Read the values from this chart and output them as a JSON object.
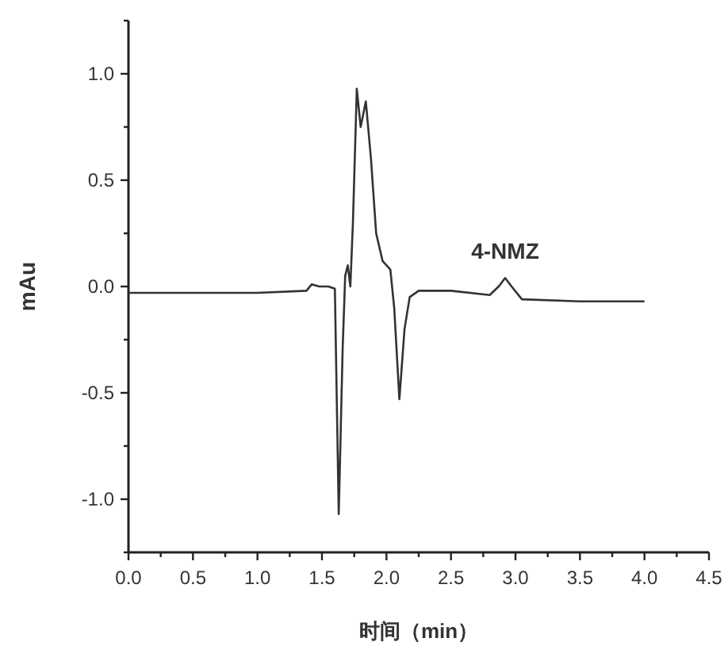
{
  "chart_data": {
    "type": "line",
    "xlabel": "时间（min）",
    "ylabel": "mAu",
    "xlim": [
      0,
      4.5
    ],
    "ylim": [
      -1.25,
      1.25
    ],
    "xticks": [
      {
        "value": 0,
        "label": "0.0"
      },
      {
        "value": 0.25,
        "label": null
      },
      {
        "value": 0.5,
        "label": "0.5"
      },
      {
        "value": 0.75,
        "label": null
      },
      {
        "value": 1,
        "label": "1.0"
      },
      {
        "value": 1.25,
        "label": null
      },
      {
        "value": 1.5,
        "label": "1.5"
      },
      {
        "value": 1.75,
        "label": null
      },
      {
        "value": 2,
        "label": "2.0"
      },
      {
        "value": 2.25,
        "label": null
      },
      {
        "value": 2.5,
        "label": "2.5"
      },
      {
        "value": 2.75,
        "label": null
      },
      {
        "value": 3,
        "label": "3.0"
      },
      {
        "value": 3.25,
        "label": null
      },
      {
        "value": 3.5,
        "label": "3.5"
      },
      {
        "value": 3.75,
        "label": null
      },
      {
        "value": 4,
        "label": "4.0"
      },
      {
        "value": 4.25,
        "label": null
      },
      {
        "value": 4.5,
        "label": "4.5"
      }
    ],
    "yticks": [
      {
        "value": -1.25,
        "label": null
      },
      {
        "value": -1,
        "label": "-1.0"
      },
      {
        "value": -0.75,
        "label": null
      },
      {
        "value": -0.5,
        "label": "-0.5"
      },
      {
        "value": -0.25,
        "label": null
      },
      {
        "value": 0,
        "label": "0.0"
      },
      {
        "value": 0.25,
        "label": null
      },
      {
        "value": 0.5,
        "label": "0.5"
      },
      {
        "value": 0.75,
        "label": null
      },
      {
        "value": 1,
        "label": "1.0"
      },
      {
        "value": 1.25,
        "label": null
      }
    ],
    "annotations": [
      {
        "text": "4-NMZ",
        "x": 2.92,
        "y": 0.04
      }
    ],
    "series": [
      {
        "color": "#333333",
        "x": [
          0,
          0.3,
          0.6,
          1.0,
          1.38,
          1.42,
          1.48,
          1.55,
          1.6,
          1.63,
          1.66,
          1.68,
          1.7,
          1.72,
          1.74,
          1.77,
          1.8,
          1.84,
          1.88,
          1.92,
          1.97,
          2.03,
          2.06,
          2.1,
          2.14,
          2.18,
          2.25,
          2.5,
          2.8,
          2.87,
          2.92,
          2.97,
          3.05,
          3.5,
          4.0
        ],
        "values": [
          -0.03,
          -0.03,
          -0.03,
          -0.03,
          -0.02,
          0.01,
          0.0,
          0.0,
          -0.01,
          -1.07,
          -0.3,
          0.05,
          0.1,
          0.0,
          0.3,
          0.93,
          0.75,
          0.87,
          0.6,
          0.25,
          0.12,
          0.08,
          -0.1,
          -0.53,
          -0.2,
          -0.05,
          -0.02,
          -0.02,
          -0.04,
          0.0,
          0.04,
          0.0,
          -0.06,
          -0.07,
          -0.07
        ]
      }
    ]
  }
}
